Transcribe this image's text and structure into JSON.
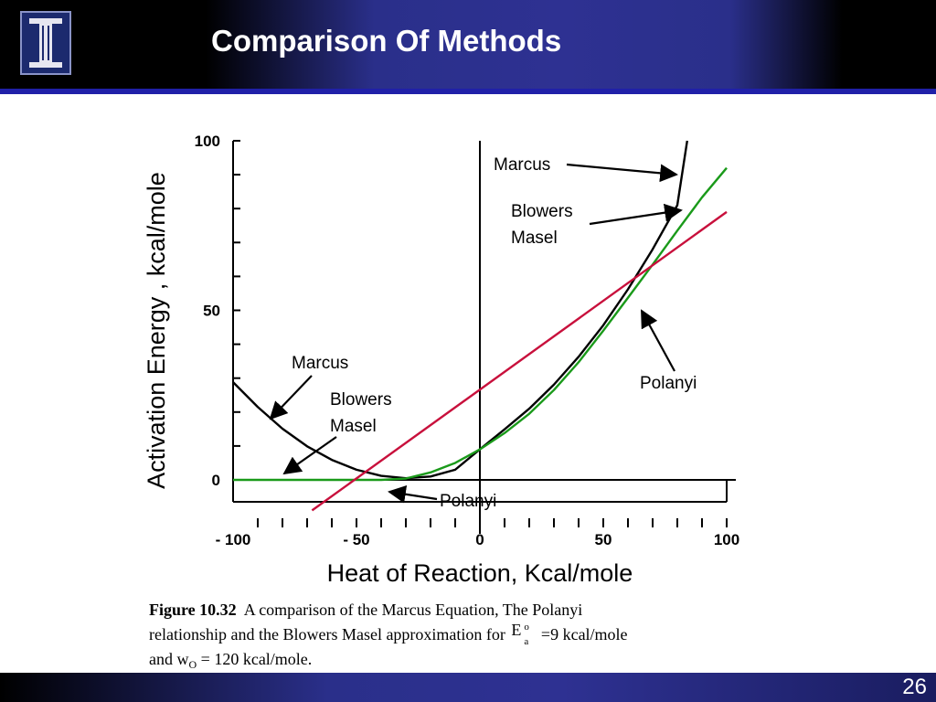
{
  "slide": {
    "title": "Comparison Of Methods",
    "page_number": "26",
    "logo_icon": "illinois-I-logo",
    "colors": {
      "header_blue": "#2e3192",
      "rule_blue": "#2020a8"
    }
  },
  "caption": {
    "figure_label": "Figure 10.32",
    "text_line1": "A comparison of the Marcus Equation, The Polanyi",
    "text_line2": "relationship and the Blowers Masel approximation for",
    "ea_symbol": "E",
    "ea_sup": "o",
    "ea_sub": "a",
    "ea_value": "=9 kcal/mole",
    "and_text": "and w",
    "w_sub": "O",
    "w_value": " = 120 kcal/mole."
  },
  "chart_data": {
    "type": "line",
    "xlabel": "Heat of Reaction, Kcal/mole",
    "ylabel": "Activation Energy , kcal/mole",
    "xlim": [
      -100,
      100
    ],
    "ylim": [
      -5,
      100
    ],
    "x_tick_labels": [
      {
        "x": -100,
        "label": "- 100"
      },
      {
        "x": -50,
        "label": "- 50"
      },
      {
        "x": 0,
        "label": "0"
      },
      {
        "x": 50,
        "label": "50"
      },
      {
        "x": 100,
        "label": "100"
      }
    ],
    "y_tick_labels": [
      {
        "y": 0,
        "label": "0"
      },
      {
        "y": 50,
        "label": "50"
      },
      {
        "y": 100,
        "label": "100"
      }
    ],
    "series": [
      {
        "name": "Marcus",
        "color": "#000000",
        "x": [
          -100,
          -90,
          -80,
          -70,
          -60,
          -50,
          -40,
          -30,
          -20,
          -10,
          0,
          10,
          20,
          30,
          40,
          50,
          60,
          70,
          80,
          84
        ],
        "y": [
          28.8,
          21.5,
          15.1,
          9.9,
          5.9,
          3.0,
          1.2,
          0.5,
          1.0,
          3.0,
          9.0,
          14.9,
          21.0,
          28.1,
          36.3,
          45.6,
          56.2,
          68.0,
          81.0,
          100.0
        ]
      },
      {
        "name": "Blowers Masel",
        "color": "#1a9a1a",
        "x": [
          -100,
          -40,
          -30,
          -20,
          -10,
          0,
          10,
          20,
          30,
          40,
          50,
          60,
          70,
          80,
          90,
          100
        ],
        "y": [
          0,
          0,
          0.4,
          2.2,
          5.0,
          9.0,
          13.8,
          19.5,
          26.5,
          34.7,
          44.0,
          53.7,
          63.5,
          73.5,
          83.3,
          92.0
        ]
      },
      {
        "name": "Polanyi",
        "color": "#c8103c",
        "x": [
          -68,
          100
        ],
        "y": [
          -9.0,
          79.0
        ]
      }
    ],
    "annotations": [
      {
        "text": "Marcus",
        "target_series": "Marcus",
        "side": "right"
      },
      {
        "text": "Blowers\nMasel",
        "target_series": "Blowers Masel",
        "side": "right"
      },
      {
        "text": "Polanyi",
        "target_series": "Polanyi",
        "side": "right"
      },
      {
        "text": "Marcus",
        "target_series": "Marcus",
        "side": "left"
      },
      {
        "text": "Blowers\nMasel",
        "target_series": "Blowers Masel",
        "side": "left"
      },
      {
        "text": "Polanyi",
        "target_series": "Polanyi",
        "side": "bottom"
      }
    ],
    "grid": false,
    "legend": "none"
  }
}
